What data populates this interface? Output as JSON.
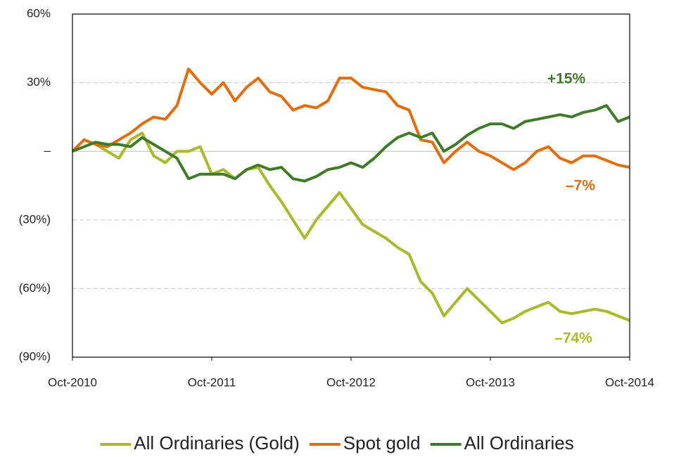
{
  "chart_data": {
    "type": "line",
    "x": [
      "2010-10",
      "2010-11",
      "2010-12",
      "2011-01",
      "2011-02",
      "2011-03",
      "2011-04",
      "2011-05",
      "2011-06",
      "2011-07",
      "2011-08",
      "2011-09",
      "2011-10",
      "2011-11",
      "2011-12",
      "2012-01",
      "2012-02",
      "2012-03",
      "2012-04",
      "2012-05",
      "2012-06",
      "2012-07",
      "2012-08",
      "2012-09",
      "2012-10",
      "2012-11",
      "2012-12",
      "2013-01",
      "2013-02",
      "2013-03",
      "2013-04",
      "2013-05",
      "2013-06",
      "2013-07",
      "2013-08",
      "2013-09",
      "2013-10",
      "2013-11",
      "2013-12",
      "2014-01",
      "2014-02",
      "2014-03",
      "2014-04",
      "2014-05",
      "2014-06",
      "2014-07",
      "2014-08",
      "2014-09",
      "2014-10"
    ],
    "series": [
      {
        "name": "All Ordinaries (Gold)",
        "color": "#aab92b",
        "values": [
          0,
          5,
          3,
          0,
          -3,
          5,
          8,
          -2,
          -5,
          0,
          0,
          2,
          -10,
          -8,
          -12,
          -8,
          -7,
          -15,
          -22,
          -30,
          -38,
          -30,
          -24,
          -18,
          -25,
          -32,
          -35,
          -38,
          -42,
          -45,
          -57,
          -62,
          -72,
          -66,
          -60,
          -65,
          -70,
          -75,
          -73,
          -70,
          -68,
          -66,
          -70,
          -71,
          -70,
          -69,
          -70,
          -72,
          -74
        ]
      },
      {
        "name": "Spot gold",
        "color": "#e46c0a",
        "values": [
          0,
          5,
          3,
          2,
          5,
          8,
          12,
          15,
          14,
          20,
          36,
          30,
          25,
          30,
          22,
          28,
          32,
          26,
          24,
          18,
          20,
          19,
          22,
          32,
          32,
          28,
          27,
          26,
          20,
          18,
          5,
          4,
          -5,
          0,
          4,
          0,
          -2,
          -5,
          -8,
          -5,
          0,
          2,
          -3,
          -5,
          -2,
          -2,
          -4,
          -6,
          -7
        ]
      },
      {
        "name": "All Ordinaries",
        "color": "#3f7a28",
        "values": [
          0,
          2,
          4,
          3,
          3,
          2,
          6,
          3,
          0,
          -3,
          -12,
          -10,
          -10,
          -10,
          -12,
          -8,
          -6,
          -8,
          -7,
          -12,
          -13,
          -11,
          -8,
          -7,
          -5,
          -7,
          -3,
          2,
          6,
          8,
          6,
          8,
          0,
          3,
          7,
          10,
          12,
          12,
          10,
          13,
          14,
          15,
          16,
          15,
          17,
          18,
          20,
          13,
          15
        ]
      }
    ],
    "xticks": [
      {
        "value": "2010-10",
        "label": "Oct-2010"
      },
      {
        "value": "2011-10",
        "label": "Oct-2011"
      },
      {
        "value": "2012-10",
        "label": "Oct-2012"
      },
      {
        "value": "2013-10",
        "label": "Oct-2013"
      },
      {
        "value": "2014-10",
        "label": "Oct-2014"
      }
    ],
    "ylim": [
      -90,
      60
    ],
    "yticks": [
      {
        "value": -90,
        "label": "(90%)"
      },
      {
        "value": -60,
        "label": "(60%)"
      },
      {
        "value": -30,
        "label": "(30%)"
      },
      {
        "value": 0,
        "label": "–"
      },
      {
        "value": 30,
        "label": "30%"
      },
      {
        "value": 60,
        "label": "60%"
      }
    ],
    "grid": true,
    "legend": "bottom",
    "annotations": [
      {
        "text": "+15%",
        "color": "#3f7a28"
      },
      {
        "text": "–7%",
        "color": "#e46c0a"
      },
      {
        "text": "–74%",
        "color": "#aab92b"
      }
    ]
  }
}
